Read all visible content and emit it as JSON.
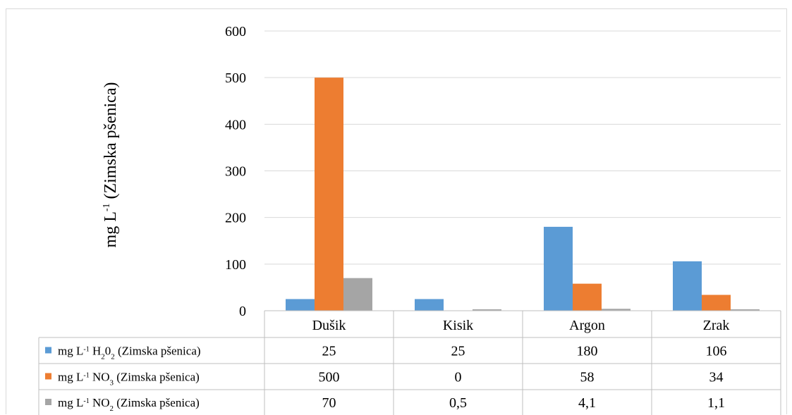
{
  "chart_data": {
    "type": "bar",
    "categories": [
      "Dušik",
      "Kisik",
      "Argon",
      "Zrak"
    ],
    "ylabel_main": "mg L",
    "ylabel_sup": "-1",
    "ylabel_rest": " (Zimska pšenica)",
    "ylim": [
      0,
      600
    ],
    "yticks": [
      0,
      100,
      200,
      300,
      400,
      500,
      600
    ],
    "grid": true,
    "series": [
      {
        "name_parts": [
          "mg L",
          "-1",
          " H",
          "2",
          "0",
          "2",
          " (Zimska pšenica)"
        ],
        "values": [
          25,
          25,
          180,
          106
        ],
        "cells": [
          "25",
          "25",
          "180",
          "106"
        ],
        "color": "#5b9bd5"
      },
      {
        "name_parts": [
          "mg L",
          "-1",
          " NO",
          "3",
          "",
          "",
          " (Zimska pšenica)"
        ],
        "values": [
          500,
          0,
          58,
          34
        ],
        "cells": [
          "500",
          "0",
          "58",
          "34"
        ],
        "color": "#ed7d31"
      },
      {
        "name_parts": [
          "mg L",
          "-1",
          " NO",
          "2",
          "",
          "",
          " (Zimska pšenica)"
        ],
        "values": [
          70,
          0.5,
          4.1,
          1.1
        ],
        "cells": [
          "70",
          "0,5",
          "4,1",
          "1,1"
        ],
        "color": "#a5a5a5"
      }
    ]
  }
}
